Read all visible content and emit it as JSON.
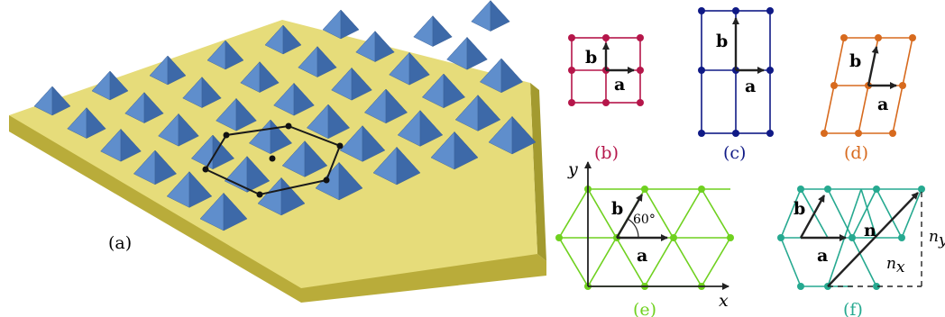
{
  "colors": {
    "board_top": "#e6dc7a",
    "board_front": "#b9ac3a",
    "board_side": "#a39a2f",
    "pyramid_light": "#8fb4de",
    "pyramid_mid": "#5f8ecc",
    "pyramid_dark": "#3d69a8",
    "panel_b": "#b5164a",
    "panel_c": "#101a86",
    "panel_d": "#d76a1e",
    "panel_e": "#6fd11f",
    "panel_f": "#26a990",
    "arrow": "#222222"
  },
  "panel_a": {
    "label": "(a)"
  },
  "panel_b": {
    "label": "(b)",
    "vec_a": "a",
    "vec_b": "b"
  },
  "panel_c": {
    "label": "(c)",
    "vec_a": "a",
    "vec_b": "b"
  },
  "panel_d": {
    "label": "(d)",
    "vec_a": "a",
    "vec_b": "b"
  },
  "panel_e": {
    "label": "(e)",
    "vec_a": "a",
    "vec_b": "b",
    "x_axis": "x",
    "y_axis": "y",
    "angle": "60°"
  },
  "panel_f": {
    "label": "(f)",
    "vec_a": "a",
    "vec_b": "b",
    "vec_n": "n",
    "n_x": "n",
    "n_x_sub": "x",
    "n_y": "n",
    "n_y_sub": "y"
  }
}
